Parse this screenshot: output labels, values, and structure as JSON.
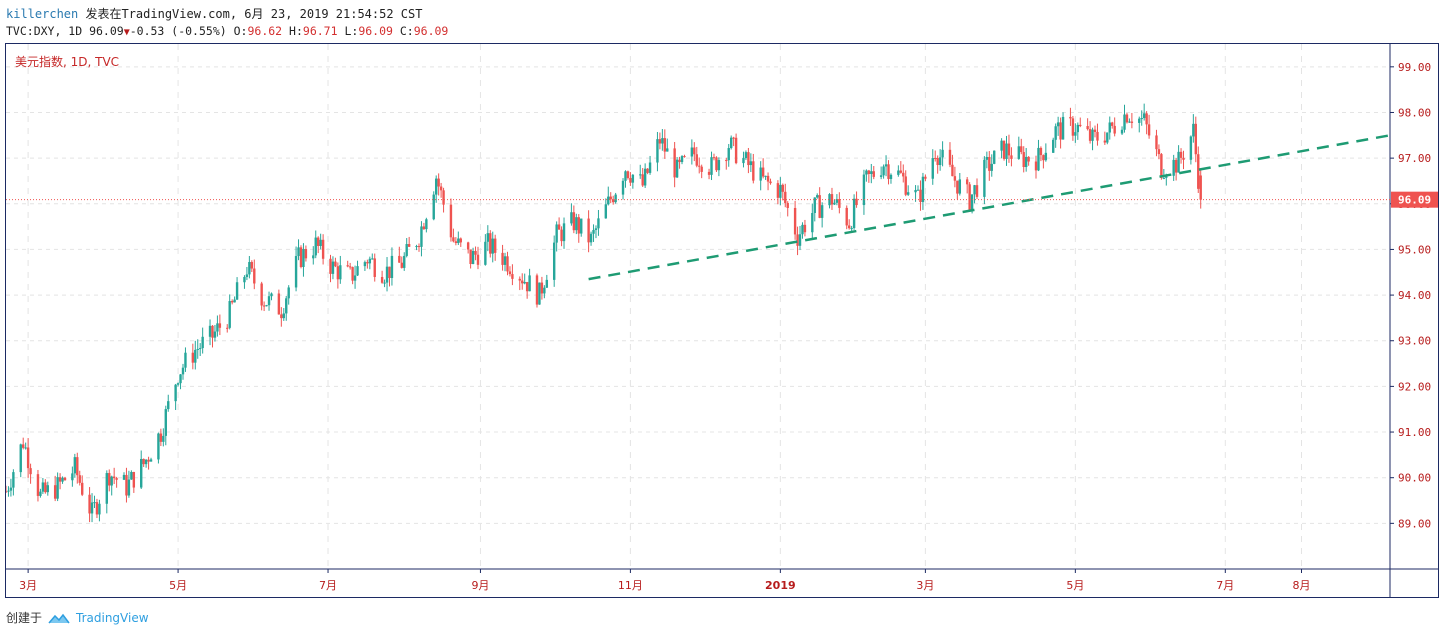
{
  "header": {
    "username": "killerchen",
    "published_text": "发表在TradingView.com, 6月 23, 2019 21:54:52 CST",
    "symbol_line_prefix": "TVC:DXY, 1D 96.09",
    "change": "-0.53 (-0.55%)",
    "o_label": "O:",
    "o_value": "96.62",
    "h_label": "H:",
    "h_value": "96.71",
    "l_label": "L:",
    "l_value": "96.09",
    "c_label": "C:",
    "c_value": "96.09"
  },
  "footer": {
    "created_with": "创建于",
    "brand": "TradingView"
  },
  "colors": {
    "up": "#26a69a",
    "down": "#ef5350",
    "trendline": "#1e9b73",
    "axis_text": "#b71c1c",
    "price_tag": "#ef5350"
  },
  "chart_data": {
    "type": "candlestick",
    "title": "美元指数, 1D, TVC",
    "ylim": [
      88.0,
      99.5
    ],
    "y_ticks": [
      89.0,
      90.0,
      91.0,
      92.0,
      93.0,
      94.0,
      95.0,
      96.0,
      97.0,
      98.0,
      99.0
    ],
    "y_tick_labels": [
      "89.00",
      "90.00",
      "91.00",
      "92.00",
      "93.00",
      "94.00",
      "95.00",
      "96.00",
      "97.00",
      "98.00",
      "99.00"
    ],
    "x_start": "2018-02-20",
    "x_end": "2019-09-06",
    "x_ticks": [
      {
        "date": "2018-03-01",
        "label": "3月",
        "bold": false
      },
      {
        "date": "2018-05-01",
        "label": "5月",
        "bold": false
      },
      {
        "date": "2018-07-01",
        "label": "7月",
        "bold": false
      },
      {
        "date": "2018-09-01",
        "label": "9月",
        "bold": false
      },
      {
        "date": "2018-11-01",
        "label": "11月",
        "bold": false
      },
      {
        "date": "2019-01-01",
        "label": "2019",
        "bold": true
      },
      {
        "date": "2019-03-01",
        "label": "3月",
        "bold": false
      },
      {
        "date": "2019-05-01",
        "label": "5月",
        "bold": false
      },
      {
        "date": "2019-07-01",
        "label": "7月",
        "bold": false
      },
      {
        "date": "2019-08-01",
        "label": "8月",
        "bold": false
      }
    ],
    "last_price": 96.09,
    "last_price_label": "96.09",
    "trendline": {
      "start": {
        "date": "2018-10-15",
        "value": 94.35
      },
      "end": {
        "date": "2019-09-06",
        "value": 97.5
      },
      "style": "dashed"
    },
    "price_anchors": [
      [
        "2018-02-20",
        89.7
      ],
      [
        "2018-02-27",
        90.8
      ],
      [
        "2018-03-06",
        89.6
      ],
      [
        "2018-03-13",
        89.8
      ],
      [
        "2018-03-20",
        90.2
      ],
      [
        "2018-03-27",
        89.2
      ],
      [
        "2018-04-03",
        90.1
      ],
      [
        "2018-04-10",
        89.8
      ],
      [
        "2018-04-17",
        90.3
      ],
      [
        "2018-04-24",
        91.0
      ],
      [
        "2018-05-01",
        92.3
      ],
      [
        "2018-05-08",
        92.8
      ],
      [
        "2018-05-15",
        93.1
      ],
      [
        "2018-05-22",
        93.6
      ],
      [
        "2018-05-29",
        94.6
      ],
      [
        "2018-06-05",
        93.9
      ],
      [
        "2018-06-12",
        93.7
      ],
      [
        "2018-06-19",
        94.8
      ],
      [
        "2018-06-26",
        95.1
      ],
      [
        "2018-07-03",
        94.6
      ],
      [
        "2018-07-10",
        94.4
      ],
      [
        "2018-07-17",
        94.8
      ],
      [
        "2018-07-24",
        94.5
      ],
      [
        "2018-07-31",
        94.7
      ],
      [
        "2018-08-07",
        95.3
      ],
      [
        "2018-08-14",
        96.6
      ],
      [
        "2018-08-21",
        95.2
      ],
      [
        "2018-08-28",
        94.8
      ],
      [
        "2018-09-04",
        95.1
      ],
      [
        "2018-09-11",
        94.8
      ],
      [
        "2018-09-18",
        94.4
      ],
      [
        "2018-09-25",
        94.0
      ],
      [
        "2018-10-02",
        95.3
      ],
      [
        "2018-10-09",
        95.6
      ],
      [
        "2018-10-16",
        95.2
      ],
      [
        "2018-10-23",
        96.0
      ],
      [
        "2018-10-30",
        96.8
      ],
      [
        "2018-11-06",
        96.4
      ],
      [
        "2018-11-13",
        97.4
      ],
      [
        "2018-11-20",
        96.7
      ],
      [
        "2018-11-27",
        97.1
      ],
      [
        "2018-12-04",
        96.8
      ],
      [
        "2018-12-11",
        97.3
      ],
      [
        "2018-12-18",
        96.9
      ],
      [
        "2018-12-25",
        96.5
      ],
      [
        "2019-01-01",
        96.3
      ],
      [
        "2019-01-08",
        95.3
      ],
      [
        "2019-01-15",
        95.9
      ],
      [
        "2019-01-22",
        96.1
      ],
      [
        "2019-01-29",
        95.6
      ],
      [
        "2019-02-05",
        96.5
      ],
      [
        "2019-02-12",
        96.9
      ],
      [
        "2019-02-19",
        96.6
      ],
      [
        "2019-02-26",
        96.1
      ],
      [
        "2019-03-05",
        97.2
      ],
      [
        "2019-03-12",
        96.6
      ],
      [
        "2019-03-19",
        96.1
      ],
      [
        "2019-03-26",
        96.8
      ],
      [
        "2019-04-02",
        97.2
      ],
      [
        "2019-04-09",
        97.0
      ],
      [
        "2019-04-16",
        97.0
      ],
      [
        "2019-04-23",
        97.6
      ],
      [
        "2019-05-01",
        97.7
      ],
      [
        "2019-05-08",
        97.4
      ],
      [
        "2019-05-15",
        97.6
      ],
      [
        "2019-05-22",
        98.0
      ],
      [
        "2019-05-29",
        97.8
      ],
      [
        "2019-06-05",
        96.8
      ],
      [
        "2019-06-12",
        96.9
      ],
      [
        "2019-06-18",
        97.6
      ],
      [
        "2019-06-21",
        96.09
      ]
    ]
  }
}
